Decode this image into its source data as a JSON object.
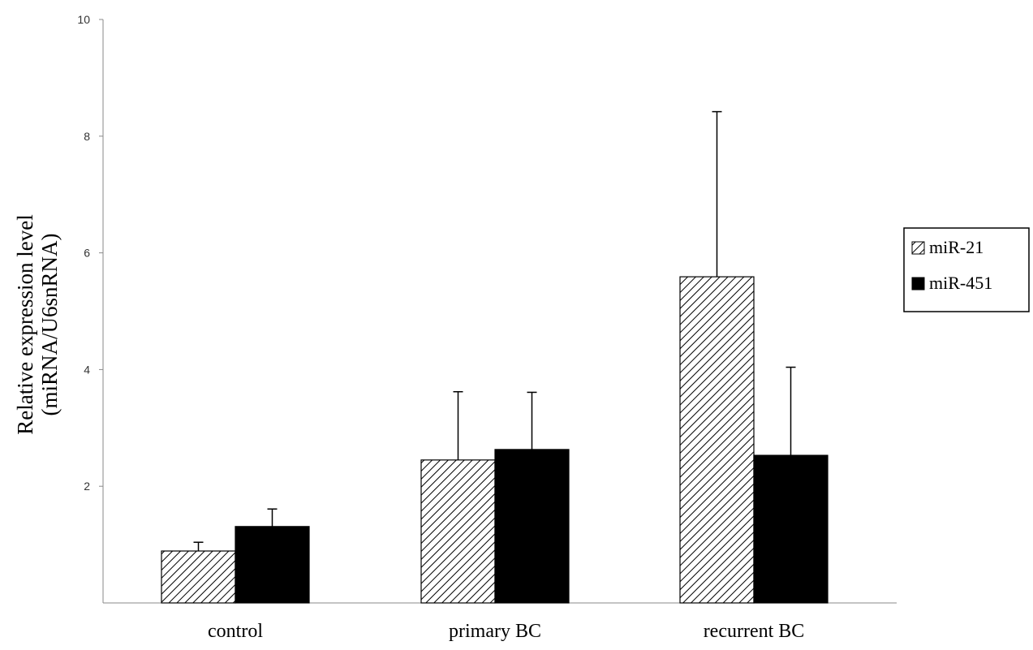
{
  "chart_data": {
    "type": "bar",
    "title": "",
    "xlabel": "",
    "ylabel_lines": [
      "Relative  expression level",
      "(miRNA/U6snRNA)"
    ],
    "categories": [
      "control",
      "primary BC",
      "recurrent BC"
    ],
    "series": [
      {
        "name": "miR-21",
        "values": [
          0.89,
          2.45,
          5.59
        ],
        "error": [
          0.15,
          1.17,
          2.83
        ],
        "fill": "hatched"
      },
      {
        "name": "miR-451",
        "values": [
          1.31,
          2.63,
          2.53
        ],
        "error": [
          0.3,
          0.98,
          1.51
        ],
        "fill": "#000000"
      }
    ],
    "ylim": [
      0,
      10
    ],
    "yticks": [
      "2",
      "4",
      "6",
      "8",
      "10"
    ],
    "grid": false,
    "legend_position": "right"
  }
}
